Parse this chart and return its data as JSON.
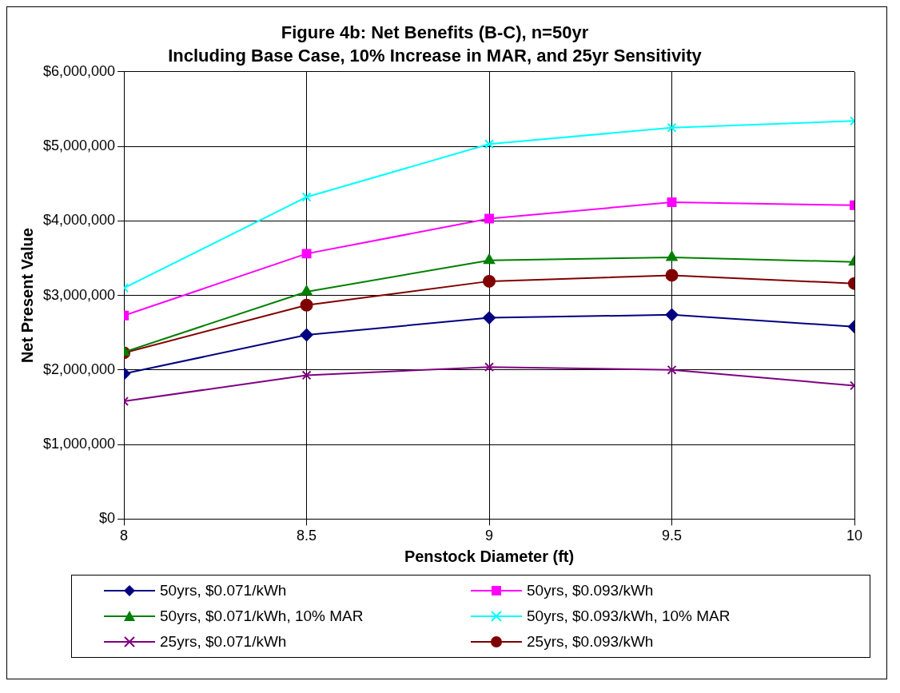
{
  "chart_data": {
    "type": "line",
    "title": "Figure 4b: Net Benefits (B-C), n=50yr",
    "subtitle": "Including Base Case, 10% Increase in MAR, and 25yr Sensitivity",
    "xlabel": "Penstock Diameter (ft)",
    "ylabel": "Net Present Value",
    "x": [
      8,
      8.5,
      9,
      9.5,
      10
    ],
    "series": [
      {
        "name": "50yrs, $0.071/kWh",
        "color": "#000080",
        "marker": "diamond",
        "values": [
          1950000,
          2470000,
          2700000,
          2740000,
          2580000
        ]
      },
      {
        "name": "50yrs, $0.093/kWh",
        "color": "#ff00ff",
        "marker": "square",
        "values": [
          2730000,
          3560000,
          4030000,
          4250000,
          4210000
        ]
      },
      {
        "name": "50yrs, $0.071/kWh, 10% MAR",
        "color": "#008000",
        "marker": "triangle",
        "values": [
          2240000,
          3050000,
          3470000,
          3510000,
          3450000
        ]
      },
      {
        "name": "50yrs, $0.093/kWh, 10% MAR",
        "color": "#00ffff",
        "marker": "cross",
        "values": [
          3100000,
          4320000,
          5030000,
          5250000,
          5340000
        ]
      },
      {
        "name": "25yrs, $0.071/kWh",
        "color": "#800080",
        "marker": "cross",
        "values": [
          1580000,
          1930000,
          2040000,
          2000000,
          1790000
        ]
      },
      {
        "name": "25yrs, $0.093/kWh",
        "color": "#800000",
        "marker": "circle",
        "values": [
          2230000,
          2870000,
          3190000,
          3270000,
          3160000
        ]
      }
    ],
    "xlim": [
      8,
      10
    ],
    "xticks": [
      8,
      8.5,
      9,
      9.5,
      10
    ],
    "ylim": [
      0,
      6000000
    ],
    "yticks": [
      {
        "value": 0,
        "label": "$0"
      },
      {
        "value": 1000000,
        "label": "$1,000,000"
      },
      {
        "value": 2000000,
        "label": "$2,000,000"
      },
      {
        "value": 3000000,
        "label": "$3,000,000"
      },
      {
        "value": 4000000,
        "label": "$4,000,000"
      },
      {
        "value": 5000000,
        "label": "$5,000,000"
      },
      {
        "value": 6000000,
        "label": "$6,000,000"
      }
    ],
    "grid": true,
    "legend": "bottom",
    "line_style": "solid"
  }
}
